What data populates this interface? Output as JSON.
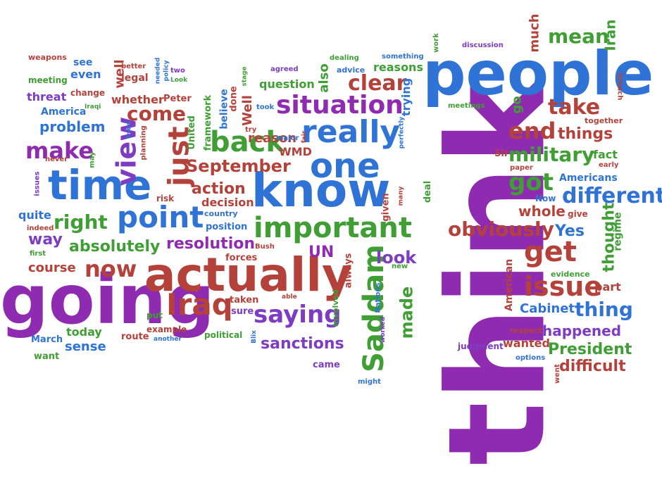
{
  "colors": {
    "purple": "#8f2bb0",
    "red": "#b5423a",
    "blue": "#2f73d6",
    "green": "#3f9e34",
    "violet": "#7d3cc2"
  },
  "words": [
    {
      "text": "think",
      "color": "purple"
    },
    {
      "text": "people",
      "color": "blue"
    },
    {
      "text": "going",
      "color": "purple"
    },
    {
      "text": "actually",
      "color": "red"
    },
    {
      "text": "know",
      "color": "blue"
    },
    {
      "text": "time",
      "color": "blue"
    },
    {
      "text": "one",
      "color": "blue"
    },
    {
      "text": "really",
      "color": "blue"
    },
    {
      "text": "important",
      "color": "green"
    },
    {
      "text": "Saddam",
      "color": "green"
    },
    {
      "text": "point",
      "color": "blue"
    },
    {
      "text": "just",
      "color": "red"
    },
    {
      "text": "back",
      "color": "green"
    },
    {
      "text": "situation",
      "color": "purple"
    },
    {
      "text": "view",
      "color": "violet"
    },
    {
      "text": "make",
      "color": "purple"
    },
    {
      "text": "Iraq",
      "color": "red"
    },
    {
      "text": "saying",
      "color": "violet"
    },
    {
      "text": "now",
      "color": "red"
    },
    {
      "text": "get",
      "color": "red"
    },
    {
      "text": "issue",
      "color": "red"
    },
    {
      "text": "different",
      "color": "blue"
    },
    {
      "text": "obviously",
      "color": "red"
    },
    {
      "text": "got",
      "color": "green"
    },
    {
      "text": "end",
      "color": "red"
    },
    {
      "text": "take",
      "color": "red"
    },
    {
      "text": "military",
      "color": "green"
    },
    {
      "text": "mean",
      "color": "green"
    },
    {
      "text": "clear",
      "color": "red"
    },
    {
      "text": "September",
      "color": "red"
    },
    {
      "text": "come",
      "color": "red"
    },
    {
      "text": "right",
      "color": "green"
    },
    {
      "text": "thing",
      "color": "blue"
    },
    {
      "text": "resolution",
      "color": "purple"
    },
    {
      "text": "absolutely",
      "color": "green"
    },
    {
      "text": "look",
      "color": "violet"
    },
    {
      "text": "made",
      "color": "green"
    },
    {
      "text": "sanctions",
      "color": "violet"
    },
    {
      "text": "things",
      "color": "red"
    },
    {
      "text": "action",
      "color": "red"
    },
    {
      "text": "course",
      "color": "red"
    },
    {
      "text": "way",
      "color": "violet"
    },
    {
      "text": "problem",
      "color": "blue"
    },
    {
      "text": "thought",
      "color": "green"
    },
    {
      "text": "President",
      "color": "green"
    },
    {
      "text": "difficult",
      "color": "red"
    },
    {
      "text": "happened",
      "color": "violet"
    },
    {
      "text": "whole",
      "color": "red"
    },
    {
      "text": "Yes",
      "color": "blue"
    },
    {
      "text": "UN",
      "color": "purple"
    },
    {
      "text": "Cabinet",
      "color": "blue"
    },
    {
      "text": "sense",
      "color": "blue"
    },
    {
      "text": "reason",
      "color": "red"
    },
    {
      "text": "decision",
      "color": "red"
    },
    {
      "text": "WMD",
      "color": "red"
    },
    {
      "text": "quite",
      "color": "blue"
    },
    {
      "text": "threat",
      "color": "violet"
    },
    {
      "text": "whether",
      "color": "red"
    },
    {
      "text": "question",
      "color": "green"
    },
    {
      "text": "reasons",
      "color": "green"
    },
    {
      "text": "wanted",
      "color": "red"
    },
    {
      "text": "part",
      "color": "red"
    },
    {
      "text": "fact",
      "color": "green"
    },
    {
      "text": "Iran",
      "color": "green"
    },
    {
      "text": "much",
      "color": "red"
    },
    {
      "text": "Americans",
      "color": "blue"
    },
    {
      "text": "regime",
      "color": "green"
    },
    {
      "text": "American",
      "color": "red"
    },
    {
      "text": "today",
      "color": "green"
    },
    {
      "text": "Well",
      "color": "red"
    },
    {
      "text": "also",
      "color": "green"
    },
    {
      "text": "trying",
      "color": "blue"
    },
    {
      "text": "even",
      "color": "blue"
    },
    {
      "text": "see",
      "color": "blue"
    },
    {
      "text": "well",
      "color": "red"
    },
    {
      "text": "legal",
      "color": "red"
    },
    {
      "text": "meeting",
      "color": "green"
    },
    {
      "text": "change",
      "color": "red"
    },
    {
      "text": "America",
      "color": "blue"
    },
    {
      "text": "Peter",
      "color": "red"
    },
    {
      "text": "believe",
      "color": "blue"
    },
    {
      "text": "framework",
      "color": "green"
    },
    {
      "text": "United",
      "color": "green"
    },
    {
      "text": "done",
      "color": "red"
    },
    {
      "text": "Sir",
      "color": "red"
    },
    {
      "text": "go",
      "color": "green"
    },
    {
      "text": "country",
      "color": "blue"
    },
    {
      "text": "position",
      "color": "blue"
    },
    {
      "text": "forces",
      "color": "red"
    },
    {
      "text": "taken",
      "color": "red"
    },
    {
      "text": "sure",
      "color": "violet"
    },
    {
      "text": "political",
      "color": "green"
    },
    {
      "text": "route",
      "color": "red"
    },
    {
      "text": "example",
      "color": "red"
    },
    {
      "text": "put",
      "color": "green"
    },
    {
      "text": "March",
      "color": "blue"
    },
    {
      "text": "want",
      "color": "green"
    },
    {
      "text": "came",
      "color": "violet"
    },
    {
      "text": "always",
      "color": "red"
    },
    {
      "text": "involved",
      "color": "green"
    },
    {
      "text": "given",
      "color": "red"
    },
    {
      "text": "deal",
      "color": "green"
    },
    {
      "text": "Now",
      "color": "blue"
    },
    {
      "text": "give",
      "color": "red"
    },
    {
      "text": "evidence",
      "color": "green"
    },
    {
      "text": "judgment",
      "color": "violet"
    },
    {
      "text": "respect",
      "color": "red"
    },
    {
      "text": "options",
      "color": "blue"
    },
    {
      "text": "went",
      "color": "red"
    },
    {
      "text": "breach",
      "color": "red"
    },
    {
      "text": "together",
      "color": "red"
    },
    {
      "text": "early",
      "color": "red"
    },
    {
      "text": "paper",
      "color": "red"
    },
    {
      "text": "meetings",
      "color": "green"
    },
    {
      "text": "discussion",
      "color": "violet"
    },
    {
      "text": "work",
      "color": "green"
    },
    {
      "text": "something",
      "color": "blue"
    },
    {
      "text": "advice",
      "color": "blue"
    },
    {
      "text": "dealing",
      "color": "green"
    },
    {
      "text": "agreed",
      "color": "violet"
    },
    {
      "text": "stage",
      "color": "green"
    },
    {
      "text": "took",
      "color": "blue"
    },
    {
      "text": "try",
      "color": "red"
    },
    {
      "text": "major",
      "color": "blue"
    },
    {
      "text": "fair",
      "color": "red"
    },
    {
      "text": "perfectly",
      "color": "blue"
    },
    {
      "text": "many",
      "color": "red"
    },
    {
      "text": "new",
      "color": "green"
    },
    {
      "text": "Nations",
      "color": "blue"
    },
    {
      "text": "worked",
      "color": "violet"
    },
    {
      "text": "might",
      "color": "blue"
    },
    {
      "text": "another",
      "color": "blue"
    },
    {
      "text": "Blix",
      "color": "blue"
    },
    {
      "text": "able",
      "color": "red"
    },
    {
      "text": "Bush",
      "color": "red"
    },
    {
      "text": "risk",
      "color": "red"
    },
    {
      "text": "planning",
      "color": "red"
    },
    {
      "text": "tried",
      "color": "blue"
    },
    {
      "text": "may",
      "color": "green"
    },
    {
      "text": "never",
      "color": "red"
    },
    {
      "text": "issues",
      "color": "violet"
    },
    {
      "text": "indeed",
      "color": "red"
    },
    {
      "text": "first",
      "color": "green"
    },
    {
      "text": "weapons",
      "color": "red"
    },
    {
      "text": "better",
      "color": "red"
    },
    {
      "text": "needed",
      "color": "blue"
    },
    {
      "text": "policy",
      "color": "blue"
    },
    {
      "text": "two",
      "color": "violet"
    },
    {
      "text": "Look",
      "color": "green"
    },
    {
      "text": "Iraqi",
      "color": "green"
    }
  ]
}
